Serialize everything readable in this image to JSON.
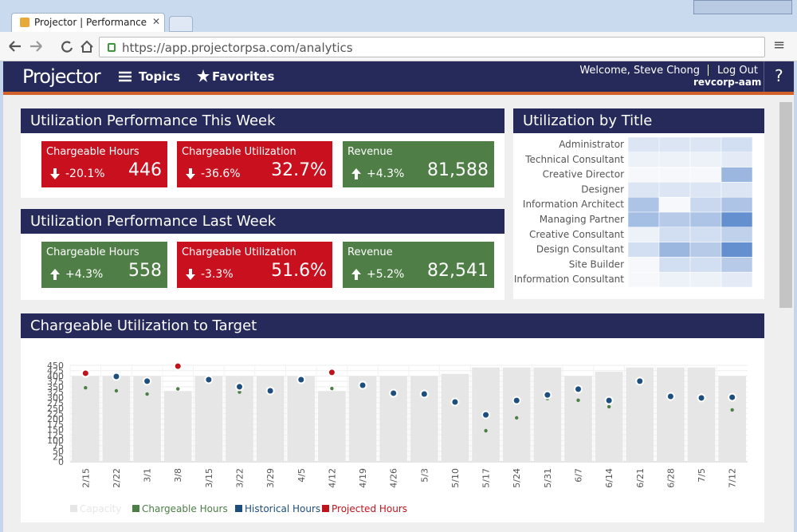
{
  "browser": {
    "tab_title": "Projector | Performance",
    "url": "https://app.projectorpsa.com/analytics"
  },
  "nav": {
    "logo": "Projector",
    "topics": "Topics",
    "favorites": "Favorites",
    "welcome": "Welcome, Steve Chong",
    "logout": "Log Out",
    "account": "revcorp-aam",
    "help": "?"
  },
  "this_week": {
    "title": "Utilization Performance This Week",
    "tiles": [
      {
        "label": "Chargeable Hours",
        "change": "-20.1%",
        "value": "446",
        "color": "#c8101e"
      },
      {
        "label": "Chargeable Utilization",
        "change": "-36.6%",
        "value": "32.7%",
        "color": "#c8101e"
      },
      {
        "label": "Revenue",
        "change": "+4.3%",
        "value": "81,588",
        "color": "#4f7f47"
      }
    ]
  },
  "last_week": {
    "title": "Utilization Performance Last Week",
    "tiles": [
      {
        "label": "Chargeable Hours",
        "change": "+4.3%",
        "value": "558",
        "color": "#4f7f47"
      },
      {
        "label": "Chargeable Utilization",
        "change": "-3.3%",
        "value": "51.6%",
        "color": "#c8101e"
      },
      {
        "label": "Revenue",
        "change": "+5.2%",
        "value": "82,541",
        "color": "#4f7f47"
      }
    ]
  },
  "heatmap": {
    "type": "heatmap",
    "title": "Utilization by Title",
    "color": "#4a7cc7",
    "range": [
      0,
      100
    ],
    "rows": [
      {
        "label": "Administrator",
        "values": [
          20,
          20,
          20,
          25
        ]
      },
      {
        "label": "Technical Consultant",
        "values": [
          10,
          10,
          10,
          15
        ]
      },
      {
        "label": "Creative Director",
        "values": [
          5,
          5,
          5,
          55
        ]
      },
      {
        "label": "Designer",
        "values": [
          20,
          20,
          20,
          20
        ]
      },
      {
        "label": "Information Architect",
        "values": [
          45,
          5,
          30,
          45
        ]
      },
      {
        "label": "Managing Partner",
        "values": [
          50,
          40,
          45,
          85
        ]
      },
      {
        "label": "Creative Consultant",
        "values": [
          10,
          25,
          25,
          35
        ]
      },
      {
        "label": "Design Consultant",
        "values": [
          25,
          55,
          40,
          85
        ]
      },
      {
        "label": "Site Builder",
        "values": [
          5,
          25,
          25,
          40
        ]
      },
      {
        "label": "Information Consultant",
        "values": [
          5,
          10,
          10,
          15
        ]
      }
    ]
  },
  "chart_data": {
    "type": "bar_dot",
    "title": "Chargeable Utilization to Target",
    "categories": [
      "2/15",
      "2/22",
      "3/1",
      "3/8",
      "3/15",
      "3/22",
      "3/29",
      "4/5",
      "4/12",
      "4/19",
      "4/26",
      "5/3",
      "5/10",
      "5/17",
      "5/24",
      "5/31",
      "6/7",
      "6/14",
      "6/21",
      "6/28",
      "7/5",
      "7/12"
    ],
    "ylim": [
      0,
      450
    ],
    "yticks": [
      0,
      25,
      50,
      75,
      100,
      125,
      150,
      175,
      200,
      225,
      250,
      275,
      300,
      325,
      350,
      375,
      400,
      425,
      450
    ],
    "grid": true,
    "series": [
      {
        "name": "Capacity",
        "color": "#e6e6e6",
        "mark": "bar",
        "values": [
          400,
          400,
          400,
          330,
          400,
          400,
          400,
          400,
          330,
          400,
          400,
          400,
          410,
          440,
          440,
          440,
          400,
          420,
          440,
          440,
          440,
          400
        ]
      },
      {
        "name": "Chargeable Hours",
        "color": "#4b7f45",
        "mark": "small-dot",
        "values": [
          345,
          331,
          316,
          340,
          383,
          325,
          331,
          383,
          342,
          357,
          320,
          316,
          279,
          145,
          205,
          295,
          287,
          257,
          376,
          305,
          298,
          242
        ]
      },
      {
        "name": "Historical Hours",
        "color": "#1d4f7e",
        "mark": "dot",
        "values": [
          null,
          398,
          376,
          null,
          383,
          350,
          331,
          383,
          null,
          357,
          320,
          316,
          279,
          219,
          286,
          312,
          339,
          286,
          376,
          305,
          298,
          301
        ]
      },
      {
        "name": "Projected Hours",
        "color": "#c0141c",
        "mark": "dot",
        "values": [
          413,
          null,
          null,
          446,
          null,
          null,
          null,
          null,
          417,
          null,
          null,
          null,
          null,
          null,
          null,
          null,
          null,
          null,
          null,
          null,
          null,
          null
        ]
      }
    ]
  }
}
